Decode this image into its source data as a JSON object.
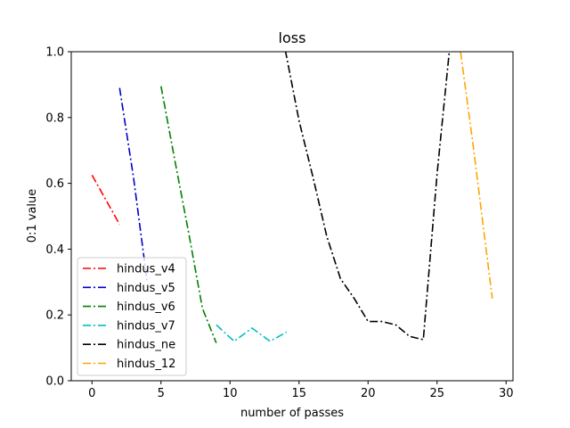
{
  "chart_data": {
    "type": "line",
    "title": "loss",
    "xlabel": "number of passes",
    "ylabel": "0:1 value",
    "xlim": [
      -1.5,
      30.5
    ],
    "ylim": [
      0.0,
      1.0
    ],
    "xticks": [
      0,
      5,
      10,
      15,
      20,
      25,
      30
    ],
    "yticks": [
      0.0,
      0.2,
      0.4,
      0.6,
      0.8,
      1.0
    ],
    "xtick_labels": [
      "0",
      "5",
      "10",
      "15",
      "20",
      "25",
      "30"
    ],
    "ytick_labels": [
      "0.0",
      "0.2",
      "0.4",
      "0.6",
      "0.8",
      "1.0"
    ],
    "grid": false,
    "legend_position": "lower-left",
    "series": [
      {
        "name": "hindus_v4",
        "color": "#ff0000",
        "x": [
          0,
          1,
          2
        ],
        "y": [
          0.625,
          0.55,
          0.475
        ]
      },
      {
        "name": "hindus_v5",
        "color": "#0000cc",
        "x": [
          2,
          3,
          4
        ],
        "y": [
          0.89,
          0.62,
          0.3
        ]
      },
      {
        "name": "hindus_v6",
        "color": "#008000",
        "x": [
          5,
          6,
          7,
          8,
          9
        ],
        "y": [
          0.895,
          0.67,
          0.45,
          0.22,
          0.115
        ]
      },
      {
        "name": "hindus_v7",
        "color": "#00bfbf",
        "x": [
          9,
          10.3,
          11.6,
          12.9,
          14.1
        ],
        "y": [
          0.17,
          0.12,
          0.16,
          0.12,
          0.148
        ]
      },
      {
        "name": "hindus_ne",
        "color": "#000000",
        "x": [
          13.8,
          15,
          16,
          17,
          18,
          19,
          20,
          21,
          22,
          23,
          24,
          25,
          26
        ],
        "y": [
          1.05,
          0.79,
          0.62,
          0.44,
          0.31,
          0.25,
          0.18,
          0.18,
          0.17,
          0.135,
          0.125,
          0.63,
          1.05
        ]
      },
      {
        "name": "hindus_12",
        "color": "#ffa500",
        "x": [
          26.7,
          27.6,
          28.4,
          29
        ],
        "y": [
          1.0,
          0.72,
          0.45,
          0.25
        ]
      }
    ]
  }
}
